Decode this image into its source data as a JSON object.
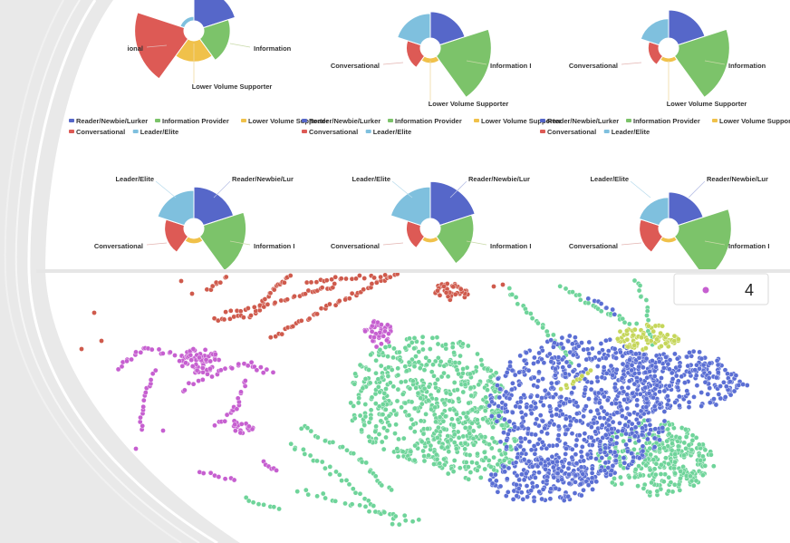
{
  "colors": {
    "reader": "#5667c9",
    "info": "#7cc36a",
    "lower": "#f0c14a",
    "conv": "#dd5a55",
    "leader": "#7fc0de",
    "c0": "#cf5a4c",
    "c4": "#c65fd0",
    "cgreen": "#6fd49a",
    "cblue": "#5b6fd4",
    "cyellow": "#c5d65a"
  },
  "legend_items": [
    {
      "label": "Reader/Newbie/Lurker",
      "color": "#5667c9"
    },
    {
      "label": "Information Provider",
      "color": "#7cc36a"
    },
    {
      "label": "Lower Volume Supporter",
      "color": "#f0c14a"
    },
    {
      "label": "Conversational",
      "color": "#dd5a55"
    },
    {
      "label": "Leader/Elite",
      "color": "#7fc0de"
    }
  ],
  "chart_data": [
    {
      "type": "pie",
      "variant": "nightingale-rose",
      "title": "",
      "categories": [
        "Reader/Newbie/Lurker",
        "Information Provider",
        "Lower Volume Supporter",
        "Conversational",
        "Leader/Elite"
      ],
      "values": [
        38,
        30,
        24,
        56,
        5
      ]
    },
    {
      "type": "pie",
      "variant": "nightingale-rose",
      "title": "",
      "categories": [
        "Reader/Newbie/Lurker",
        "Information Provider",
        "Lower Volume Supporter",
        "Conversational",
        "Leader/Elite"
      ],
      "values": [
        30,
        58,
        6,
        16,
        28
      ]
    },
    {
      "type": "pie",
      "variant": "nightingale-rose",
      "title": "",
      "categories": [
        "Reader/Newbie/Lurker",
        "Information Provider",
        "Lower Volume Supporter",
        "Conversational",
        "Leader/Elite"
      ],
      "values": [
        32,
        58,
        5,
        12,
        22
      ]
    },
    {
      "type": "pie",
      "variant": "nightingale-rose",
      "title": "",
      "categories": [
        "Reader/Newbie/Lurker",
        "Information Provider",
        "Lower Volume Supporter",
        "Conversational",
        "Leader/Elite"
      ],
      "values": [
        36,
        48,
        6,
        22,
        32
      ]
    },
    {
      "type": "pie",
      "variant": "nightingale-rose",
      "title": "",
      "categories": [
        "Reader/Newbie/Lurker",
        "Information Provider",
        "Lower Volume Supporter",
        "Conversational",
        "Leader/Elite"
      ],
      "values": [
        42,
        38,
        5,
        16,
        36
      ]
    },
    {
      "type": "pie",
      "variant": "nightingale-rose",
      "title": "",
      "categories": [
        "Reader/Newbie/Lurker",
        "Information Provider",
        "Lower Volume Supporter",
        "Conversational",
        "Leader/Elite"
      ],
      "values": [
        30,
        60,
        5,
        22,
        24
      ]
    },
    {
      "type": "scatter",
      "title": "",
      "legend": [
        {
          "name": "4",
          "color": "#c65fd0"
        }
      ],
      "legend_position": "top-right",
      "series_colors": [
        "#cf5a4c",
        "#c65fd0",
        "#6fd49a",
        "#5b6fd4",
        "#c5d65a"
      ]
    }
  ],
  "labels": {
    "conversational": "Conversational",
    "conversational_cut": "ional",
    "information": "Information",
    "information_cut": "Information I",
    "lower": "Lower Volume Supporter",
    "leader": "Leader/Elite",
    "reader_cut": "Reader/Newbie/Lur",
    "scatter_legend_value": "4"
  }
}
